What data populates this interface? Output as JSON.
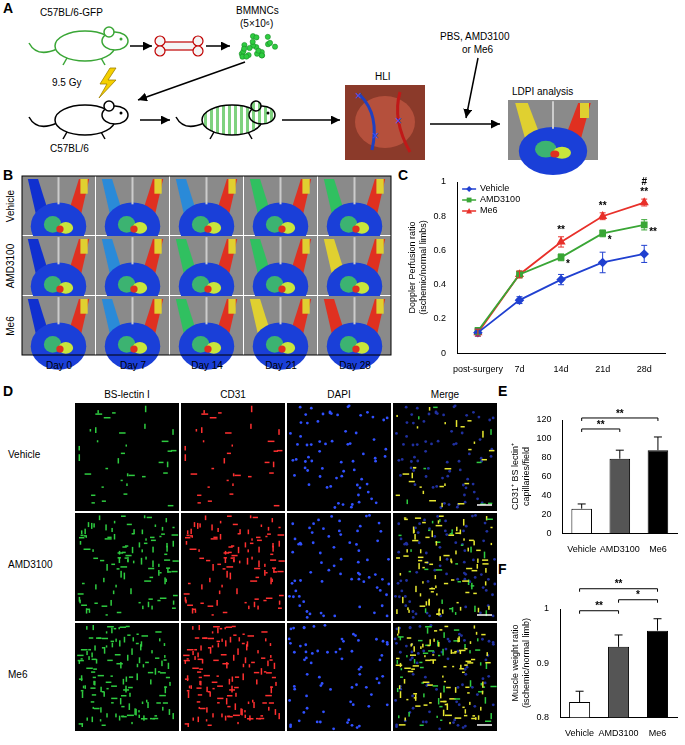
{
  "figure": {
    "panel_labels": [
      "A",
      "B",
      "C",
      "D",
      "E",
      "F"
    ],
    "A": {
      "donor": "C57BL/6-GFP",
      "cells": "BMMNCs",
      "cell_count": "(5×10⁶)",
      "irradiation": "9.5 Gy",
      "recipient": "C57BL/6",
      "surgery": "HLI",
      "treatment": [
        "PBS, AMD3100",
        "or Me6"
      ],
      "analysis": "LDPI analysis"
    },
    "B": {
      "rows": [
        "Vehicle",
        "AMD3100",
        "Me6"
      ],
      "columns": [
        "Day 0",
        "Day 7",
        "Day 14",
        "Day 21",
        "Day 28"
      ]
    },
    "D": {
      "rows": [
        "Vehicle",
        "AMD3100",
        "Me6"
      ],
      "columns": [
        "BS-lectin I",
        "CD31",
        "DAPI",
        "Merge"
      ]
    }
  },
  "chart_data": [
    {
      "type": "line",
      "categories": [
        "post-surgery",
        "7d",
        "14d",
        "21d",
        "28d"
      ],
      "y_label": [
        "Doppler Perfusion ratio",
        "(ischemic/normal limbs)"
      ],
      "ylim": [
        0,
        1
      ],
      "yticks": [
        0,
        0.2,
        0.4,
        0.6,
        0.8,
        1
      ],
      "grid": false,
      "legend": "upper left",
      "series": [
        {
          "name": "Vehicle",
          "color": "#2040d0",
          "marker": "diamond",
          "values": [
            0.12,
            0.31,
            0.43,
            0.53,
            0.58
          ],
          "errors": [
            0.02,
            0.02,
            0.03,
            0.06,
            0.05
          ],
          "significance": [
            [],
            [],
            [],
            [],
            []
          ]
        },
        {
          "name": "AMD3100",
          "color": "#3aa636",
          "marker": "square",
          "values": [
            0.13,
            0.46,
            0.56,
            0.7,
            0.75
          ],
          "errors": [
            0.02,
            0.02,
            0.02,
            0.02,
            0.03
          ],
          "significance": [
            [],
            [],
            [
              "*"
            ],
            [
              "*"
            ],
            [
              "**"
            ]
          ]
        },
        {
          "name": "Me6",
          "color": "#e8302a",
          "marker": "triangle",
          "values": [
            0.12,
            0.46,
            0.65,
            0.8,
            0.88
          ],
          "errors": [
            0.02,
            0.02,
            0.03,
            0.02,
            0.02
          ],
          "significance": [
            [],
            [],
            [
              "**"
            ],
            [
              "**"
            ],
            [
              "#",
              "**"
            ]
          ]
        }
      ]
    },
    {
      "type": "bar",
      "categories": [
        "Vehicle",
        "AMD3100",
        "Me6"
      ],
      "values": [
        26,
        79,
        88
      ],
      "errors": [
        5,
        9,
        14
      ],
      "colors": [
        "#ffffff",
        "#555555",
        "#000000"
      ],
      "y_label": [
        "CD31⁺ BS lectin⁺",
        "capillaries/field"
      ],
      "ylim": [
        0,
        120
      ],
      "yticks": [
        0,
        20,
        40,
        60,
        80,
        100,
        120
      ],
      "grid": false,
      "comparisons": [
        {
          "from": "Vehicle",
          "to": "AMD3100",
          "text": "**"
        },
        {
          "from": "Vehicle",
          "to": "Me6",
          "text": "**"
        }
      ]
    },
    {
      "type": "bar",
      "categories": [
        "Vehicle",
        "AMD3100",
        "Me6"
      ],
      "values": [
        0.828,
        0.93,
        0.96
      ],
      "errors": [
        0.02,
        0.022,
        0.022
      ],
      "colors": [
        "#ffffff",
        "#555555",
        "#000000"
      ],
      "y_label": [
        "Muscle weight ratio",
        "(ischemic/normal limb)"
      ],
      "ylim": [
        0.8,
        1
      ],
      "yticks": [
        0.8,
        0.9,
        1
      ],
      "grid": false,
      "comparisons": [
        {
          "from": "Vehicle",
          "to": "AMD3100",
          "text": "**"
        },
        {
          "from": "AMD3100",
          "to": "Me6",
          "text": "*"
        },
        {
          "from": "Vehicle",
          "to": "Me6",
          "text": "**"
        }
      ]
    }
  ]
}
